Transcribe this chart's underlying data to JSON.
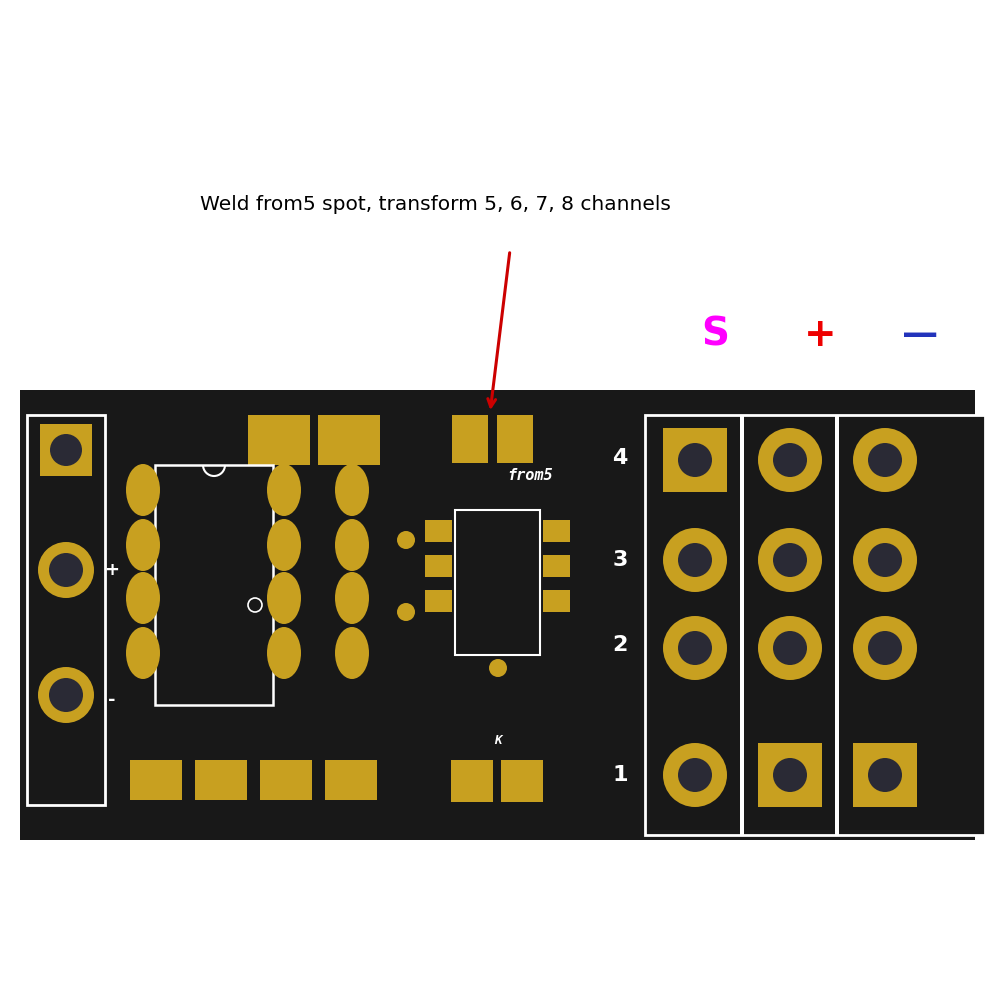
{
  "bg_color": "#ffffff",
  "board_color": "#181818",
  "gold_color": "#c8a020",
  "white_color": "#ffffff",
  "title_text": "Weld from5 spot, transform 5, 6, 7, 8 channels",
  "title_fontsize": 14.5,
  "s_label": "S",
  "s_color": "#ff00ff",
  "plus_label": "+",
  "plus_color": "#ee0000",
  "minus_label": "—",
  "minus_color": "#2233bb",
  "label_fontsize": 28,
  "arrow_color": "#cc0000"
}
